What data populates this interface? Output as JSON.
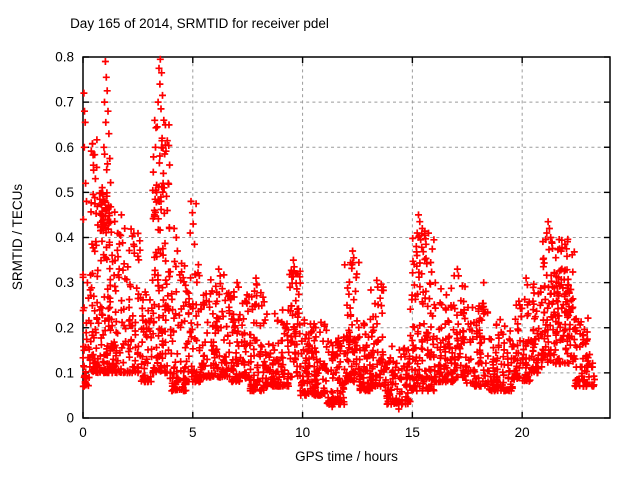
{
  "chart_data": {
    "type": "scatter",
    "title": "Day 165 of 2014, SRMTID for receiver pdel",
    "xlabel": "GPS time / hours",
    "ylabel": "SRMTID / TECUs",
    "xlim": [
      0,
      24
    ],
    "ylim": [
      0,
      0.8
    ],
    "xticks": {
      "values": [
        0,
        5,
        10,
        15,
        20
      ],
      "labels": [
        "0",
        "5",
        "10",
        "15",
        "20"
      ]
    },
    "yticks": {
      "values": [
        0,
        0.1,
        0.2,
        0.3,
        0.4,
        0.5,
        0.6,
        0.7,
        0.8
      ],
      "labels": [
        "0",
        "0.1",
        "0.2",
        "0.3",
        "0.4",
        "0.5",
        "0.6",
        "0.7",
        "0.8"
      ]
    },
    "grid": {
      "show": true,
      "style": "dashed",
      "color": "#9b9b9b"
    },
    "marker": {
      "symbol": "plus",
      "color": "#ff0000",
      "size": 7,
      "stroke_width": 1.7
    },
    "background": "#ffffff",
    "border_color": "#000000",
    "tick_length": 6,
    "legend": "none",
    "seed": 20140165,
    "description": "Dense scatter of SRMTID vs GPS time; baseline band ~0.05-0.25 TECUs all day, large activity bursts up to ~0.8 near hours 0-1.3 and 3.2-3.9, moderate spikes near hours 5, 9.6, 12.3, 15-16 (to ~0.45) and 21-22.4 (to ~0.44); quietest dips ~0.02-0.03 near hours 11.3 and 14.4; data ends near hour 23.3.",
    "segments_format": [
      "t_start_hours",
      "t_end_hours",
      "n_points",
      "y_min_TECUs",
      "y_max_TECUs",
      "shape_exponent"
    ],
    "segments": [
      [
        0.0,
        0.35,
        40,
        0.07,
        0.32,
        2.0
      ],
      [
        0.35,
        1.45,
        165,
        0.1,
        0.62,
        2.2
      ],
      [
        0.75,
        1.2,
        35,
        0.4,
        0.5,
        1.0
      ],
      [
        1.45,
        2.6,
        105,
        0.1,
        0.42,
        2.2
      ],
      [
        2.6,
        3.15,
        55,
        0.08,
        0.3,
        2.0
      ],
      [
        3.15,
        3.95,
        125,
        0.1,
        0.66,
        2.0
      ],
      [
        3.95,
        4.7,
        80,
        0.06,
        0.35,
        2.2
      ],
      [
        4.7,
        5.35,
        60,
        0.08,
        0.34,
        2.0
      ],
      [
        5.35,
        6.7,
        125,
        0.09,
        0.32,
        2.1
      ],
      [
        6.7,
        7.6,
        85,
        0.08,
        0.28,
        2.0
      ],
      [
        7.6,
        8.3,
        70,
        0.06,
        0.3,
        2.0
      ],
      [
        8.3,
        9.4,
        100,
        0.07,
        0.24,
        2.0
      ],
      [
        9.4,
        9.9,
        55,
        0.09,
        0.34,
        1.6
      ],
      [
        9.9,
        11.1,
        125,
        0.05,
        0.22,
        2.0
      ],
      [
        11.1,
        11.9,
        75,
        0.03,
        0.18,
        1.8
      ],
      [
        11.9,
        12.6,
        75,
        0.08,
        0.35,
        1.7
      ],
      [
        12.6,
        13.1,
        55,
        0.06,
        0.22,
        1.9
      ],
      [
        13.1,
        13.7,
        60,
        0.07,
        0.3,
        1.8
      ],
      [
        13.7,
        14.9,
        110,
        0.03,
        0.16,
        1.8
      ],
      [
        14.9,
        16.0,
        135,
        0.06,
        0.42,
        1.7
      ],
      [
        16.0,
        16.9,
        85,
        0.08,
        0.3,
        2.0
      ],
      [
        16.9,
        17.4,
        55,
        0.09,
        0.33,
        1.6
      ],
      [
        17.4,
        18.5,
        90,
        0.07,
        0.26,
        2.0
      ],
      [
        18.5,
        19.6,
        90,
        0.06,
        0.22,
        2.0
      ],
      [
        19.6,
        20.4,
        70,
        0.08,
        0.28,
        1.9
      ],
      [
        20.4,
        20.9,
        50,
        0.1,
        0.3,
        1.9
      ],
      [
        20.9,
        22.4,
        145,
        0.12,
        0.4,
        1.7
      ],
      [
        21.3,
        22.2,
        30,
        0.22,
        0.34,
        1.0
      ],
      [
        22.4,
        23.3,
        70,
        0.07,
        0.24,
        1.9
      ]
    ],
    "outliers": [
      [
        0.04,
        0.72
      ],
      [
        0.07,
        0.68
      ],
      [
        0.1,
        0.655
      ],
      [
        0.06,
        0.6
      ],
      [
        0.12,
        0.52
      ],
      [
        0.16,
        0.48
      ],
      [
        0.02,
        0.44
      ],
      [
        1.02,
        0.79
      ],
      [
        1.06,
        0.755
      ],
      [
        1.1,
        0.725
      ],
      [
        0.98,
        0.7
      ],
      [
        1.14,
        0.68
      ],
      [
        1.04,
        0.655
      ],
      [
        1.18,
        0.63
      ],
      [
        0.95,
        0.6
      ],
      [
        1.22,
        0.575
      ],
      [
        1.08,
        0.55
      ],
      [
        1.75,
        0.45
      ],
      [
        1.9,
        0.42
      ],
      [
        3.52,
        0.795
      ],
      [
        3.46,
        0.775
      ],
      [
        3.58,
        0.765
      ],
      [
        3.5,
        0.74
      ],
      [
        3.62,
        0.715
      ],
      [
        3.42,
        0.7
      ],
      [
        3.55,
        0.685
      ],
      [
        3.68,
        0.66
      ],
      [
        3.38,
        0.645
      ],
      [
        3.6,
        0.62
      ],
      [
        3.3,
        0.6
      ],
      [
        3.72,
        0.585
      ],
      [
        3.48,
        0.565
      ],
      [
        3.2,
        0.545
      ],
      [
        3.65,
        0.52
      ],
      [
        3.35,
        0.5
      ],
      [
        3.55,
        0.48
      ],
      [
        3.25,
        0.46
      ],
      [
        4.15,
        0.42
      ],
      [
        4.25,
        0.4
      ],
      [
        4.3,
        0.37
      ],
      [
        4.92,
        0.48
      ],
      [
        4.98,
        0.455
      ],
      [
        5.15,
        0.475
      ],
      [
        5.02,
        0.43
      ],
      [
        4.88,
        0.41
      ],
      [
        5.08,
        0.385
      ],
      [
        6.18,
        0.33
      ],
      [
        6.25,
        0.315
      ],
      [
        7.02,
        0.3
      ],
      [
        7.08,
        0.29
      ],
      [
        7.88,
        0.31
      ],
      [
        7.92,
        0.295
      ],
      [
        9.58,
        0.35
      ],
      [
        9.62,
        0.335
      ],
      [
        9.55,
        0.32
      ],
      [
        11.35,
        0.025
      ],
      [
        12.28,
        0.37
      ],
      [
        12.33,
        0.355
      ],
      [
        12.25,
        0.34
      ],
      [
        13.38,
        0.305
      ],
      [
        13.42,
        0.29
      ],
      [
        14.38,
        0.02
      ],
      [
        14.52,
        0.03
      ],
      [
        15.28,
        0.45
      ],
      [
        15.34,
        0.435
      ],
      [
        15.45,
        0.42
      ],
      [
        15.22,
        0.41
      ],
      [
        15.55,
        0.405
      ],
      [
        15.38,
        0.395
      ],
      [
        15.62,
        0.385
      ],
      [
        15.18,
        0.38
      ],
      [
        17.05,
        0.33
      ],
      [
        17.1,
        0.315
      ],
      [
        18.25,
        0.3
      ],
      [
        20.18,
        0.31
      ],
      [
        20.24,
        0.295
      ],
      [
        21.18,
        0.435
      ],
      [
        21.24,
        0.42
      ],
      [
        21.12,
        0.41
      ],
      [
        21.3,
        0.4
      ],
      [
        21.35,
        0.39
      ],
      [
        21.95,
        0.385
      ],
      [
        22.02,
        0.375
      ]
    ]
  }
}
